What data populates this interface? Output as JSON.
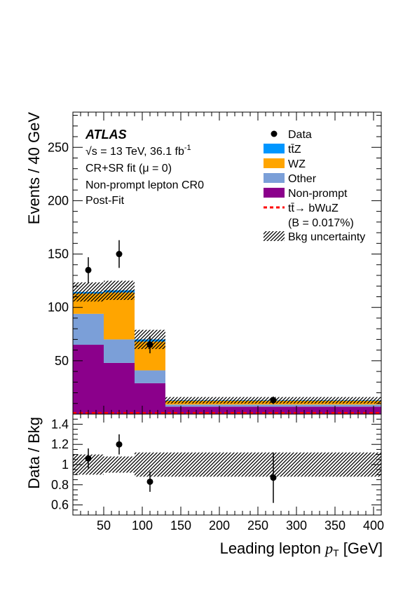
{
  "chart_data": {
    "type": "bar",
    "subtype": "stacked-histogram-with-ratio",
    "x_bins": [
      [
        10,
        50
      ],
      [
        50,
        90
      ],
      [
        90,
        130
      ],
      [
        130,
        410
      ]
    ],
    "x_range": [
      10,
      410
    ],
    "xlabel": "Leading lepton",
    "xlabel_var": "p",
    "xlabel_sub": "T",
    "xlabel_unit": "[GeV]",
    "x_ticks": [
      50,
      100,
      150,
      200,
      250,
      300,
      350,
      400
    ],
    "ylabel": "Events / 40 GeV",
    "ylim": [
      0,
      283
    ],
    "y_ticks": [
      50,
      100,
      150,
      200,
      250
    ],
    "series": [
      {
        "name": "Non-prompt",
        "color": "#8b008b",
        "values": [
          65,
          48,
          29,
          7
        ]
      },
      {
        "name": "Other",
        "color": "#7b9fd8",
        "values": [
          29,
          22,
          12,
          2
        ]
      },
      {
        "name": "WZ",
        "color": "#ffa500",
        "values": [
          19,
          44,
          27,
          3.5
        ]
      },
      {
        "name": "ttZ",
        "color": "#0096ff",
        "values": [
          1.5,
          2,
          2,
          0.5
        ]
      }
    ],
    "bkg_uncertainty": [
      9,
      9,
      9,
      3
    ],
    "data": [
      {
        "x": 30,
        "y": 135,
        "err": 12
      },
      {
        "x": 70,
        "y": 150,
        "err": 13
      },
      {
        "x": 110,
        "y": 65,
        "err": 8
      },
      {
        "x": 270,
        "y": 13,
        "err": 3.5
      }
    ],
    "signal": {
      "name": "tt→bWuZ",
      "color": "#ff0000",
      "style": "dashed",
      "values": [
        1,
        1,
        1,
        1
      ]
    },
    "ratio": {
      "ylabel": "Data / Bkg",
      "ylim": [
        0.5,
        1.5
      ],
      "y_ticks": [
        "0.6",
        "0.8",
        "1",
        "1.2",
        "1.4"
      ],
      "band": [
        0.1,
        0.08,
        0.12,
        0.12
      ],
      "points": [
        {
          "x": 30,
          "y": 1.06,
          "err": 0.1
        },
        {
          "x": 70,
          "y": 1.2,
          "err": 0.1
        },
        {
          "x": 110,
          "y": 0.83,
          "err": 0.1
        },
        {
          "x": 270,
          "y": 0.87,
          "err": 0.25
        }
      ]
    },
    "annotations": {
      "atlas": "ATLAS",
      "energy": "√s = 13 TeV, 36.1 fb",
      "energy_sup": "-1",
      "fit": "CR+SR fit (μ = 0)",
      "region": "Non-prompt lepton CR0",
      "postfit": "Post-Fit"
    },
    "legend": {
      "placement": "top-right",
      "data": "Data",
      "ttz": "tt̄Z",
      "wz": "WZ",
      "other": "Other",
      "nonprompt": "Non-prompt",
      "signal": "tt̄→ bWuZ",
      "signal_br": "(B = 0.017%)",
      "uncertainty": "Bkg uncertainty"
    }
  }
}
